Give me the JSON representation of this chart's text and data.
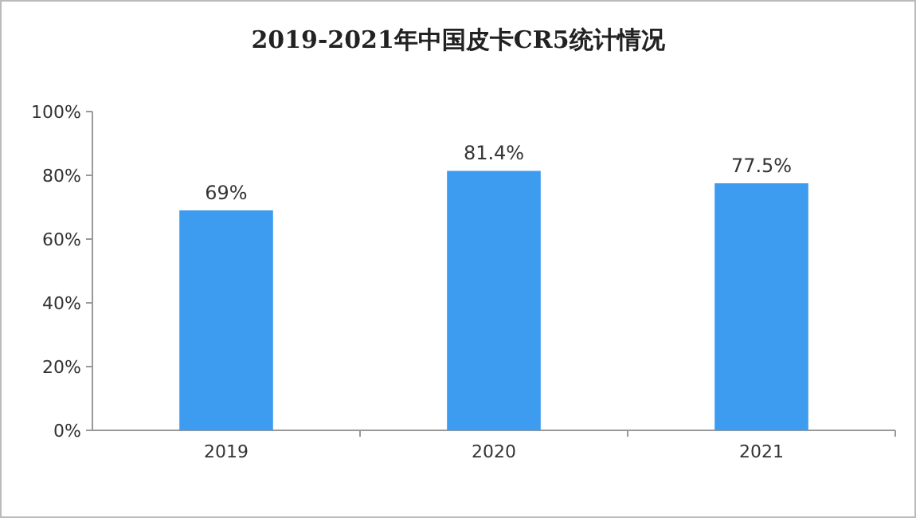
{
  "chart_data": {
    "type": "bar",
    "title": "2019-2021年中国皮卡CR5统计情况",
    "categories": [
      "2019",
      "2020",
      "2021"
    ],
    "values": [
      69,
      81.4,
      77.5
    ],
    "value_labels": [
      "69%",
      "81.4%",
      "77.5%"
    ],
    "color": "#3d9bf0",
    "ylim": [
      0,
      100
    ],
    "yticks": [
      {
        "value": 0,
        "label": "0%"
      },
      {
        "value": 20,
        "label": "20%"
      },
      {
        "value": 40,
        "label": "40%"
      },
      {
        "value": 60,
        "label": "60%"
      },
      {
        "value": 80,
        "label": "80%"
      },
      {
        "value": 100,
        "label": "100%"
      }
    ],
    "grid": false
  }
}
